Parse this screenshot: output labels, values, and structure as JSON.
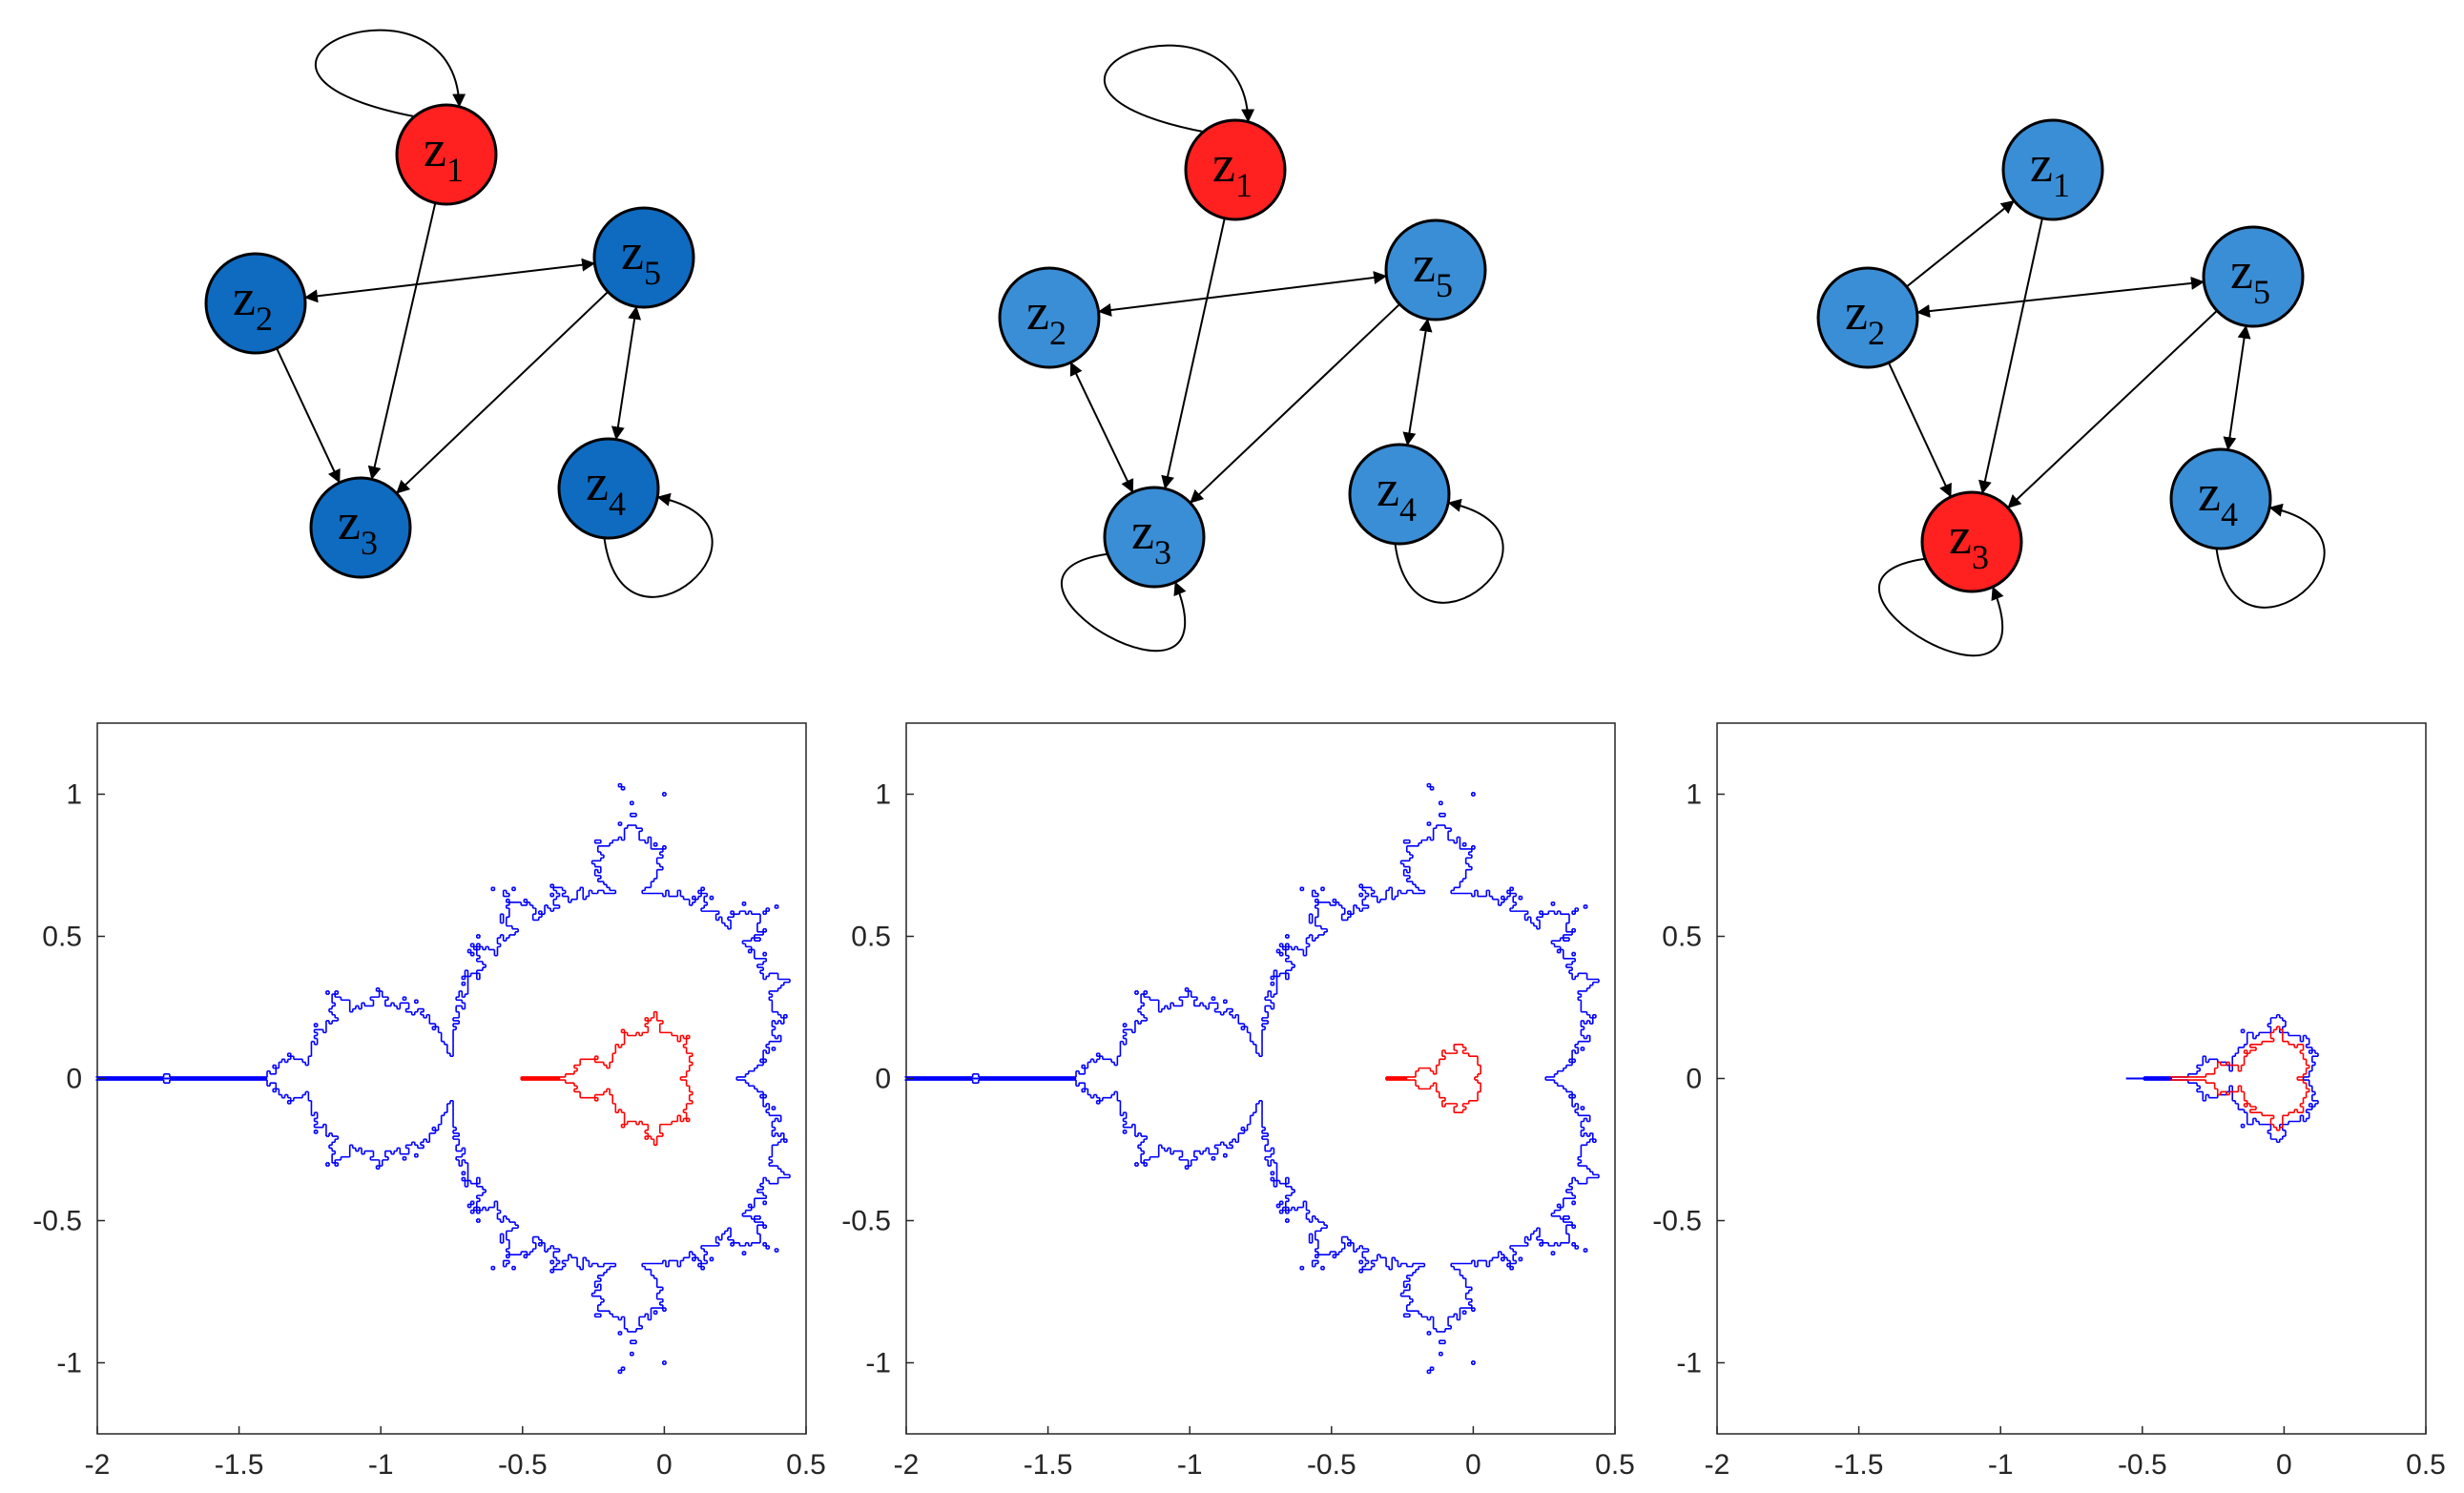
{
  "colors": {
    "blue_node": "#0e6bc0",
    "blue_node_light": "#3a8ed6",
    "red_node": "#ff2020",
    "edge": "#000000",
    "set_blue": "#0000ff",
    "set_red": "#ff0000"
  },
  "graphs": [
    {
      "nodes": [
        {
          "id": "1",
          "letter": "z",
          "sub": "1",
          "state": "red"
        },
        {
          "id": "2",
          "letter": "z",
          "sub": "2",
          "state": "blue"
        },
        {
          "id": "3",
          "letter": "z",
          "sub": "3",
          "state": "blue"
        },
        {
          "id": "4",
          "letter": "z",
          "sub": "4",
          "state": "blue"
        },
        {
          "id": "5",
          "letter": "z",
          "sub": "5",
          "state": "blue"
        }
      ],
      "edges": [
        {
          "from": "1",
          "to": "1",
          "type": "loop"
        },
        {
          "from": "1",
          "to": "3",
          "type": "directed"
        },
        {
          "from": "2",
          "to": "5",
          "type": "bidirectional"
        },
        {
          "from": "2",
          "to": "3",
          "type": "directed"
        },
        {
          "from": "5",
          "to": "3",
          "type": "directed"
        },
        {
          "from": "5",
          "to": "4",
          "type": "bidirectional"
        },
        {
          "from": "4",
          "to": "4",
          "type": "loop"
        }
      ]
    },
    {
      "nodes": [
        {
          "id": "1",
          "letter": "z",
          "sub": "1",
          "state": "red"
        },
        {
          "id": "2",
          "letter": "z",
          "sub": "2",
          "state": "blue"
        },
        {
          "id": "3",
          "letter": "z",
          "sub": "3",
          "state": "blue"
        },
        {
          "id": "4",
          "letter": "z",
          "sub": "4",
          "state": "blue"
        },
        {
          "id": "5",
          "letter": "z",
          "sub": "5",
          "state": "blue"
        }
      ],
      "edges": [
        {
          "from": "1",
          "to": "1",
          "type": "loop"
        },
        {
          "from": "1",
          "to": "3",
          "type": "directed"
        },
        {
          "from": "2",
          "to": "5",
          "type": "bidirectional"
        },
        {
          "from": "2",
          "to": "3",
          "type": "bidirectional"
        },
        {
          "from": "5",
          "to": "3",
          "type": "directed"
        },
        {
          "from": "5",
          "to": "4",
          "type": "bidirectional"
        },
        {
          "from": "3",
          "to": "3",
          "type": "loop"
        },
        {
          "from": "4",
          "to": "4",
          "type": "loop"
        }
      ]
    },
    {
      "nodes": [
        {
          "id": "1",
          "letter": "z",
          "sub": "1",
          "state": "blue"
        },
        {
          "id": "2",
          "letter": "z",
          "sub": "2",
          "state": "blue"
        },
        {
          "id": "3",
          "letter": "z",
          "sub": "3",
          "state": "red"
        },
        {
          "id": "4",
          "letter": "z",
          "sub": "4",
          "state": "blue"
        },
        {
          "id": "5",
          "letter": "z",
          "sub": "5",
          "state": "blue"
        }
      ],
      "edges": [
        {
          "from": "2",
          "to": "1",
          "type": "directed"
        },
        {
          "from": "1",
          "to": "3",
          "type": "directed"
        },
        {
          "from": "2",
          "to": "5",
          "type": "bidirectional"
        },
        {
          "from": "2",
          "to": "3",
          "type": "directed"
        },
        {
          "from": "5",
          "to": "3",
          "type": "directed"
        },
        {
          "from": "5",
          "to": "4",
          "type": "bidirectional"
        },
        {
          "from": "3",
          "to": "3",
          "type": "loop"
        },
        {
          "from": "4",
          "to": "4",
          "type": "loop"
        }
      ]
    }
  ],
  "plots": [
    {
      "xlim": [
        -2,
        0.5
      ],
      "ylim": [
        -1.25,
        1.25
      ],
      "xticks": [
        "-2",
        "-1.5",
        "-1",
        "-0.5",
        "0",
        "0.5"
      ],
      "yticks": [
        "1",
        "0.5",
        "0",
        "-0.5",
        "-1"
      ],
      "blue_set": "mandelbrot",
      "red_set": {
        "center": [
          -0.13,
          0
        ],
        "scale": 0.25
      }
    },
    {
      "xlim": [
        -2,
        0.5
      ],
      "ylim": [
        -1.25,
        1.25
      ],
      "xticks": [
        "-2",
        "-1.5",
        "-1",
        "-0.5",
        "0",
        "0.5"
      ],
      "yticks": [
        "1",
        "0.5",
        "0",
        "-0.5",
        "-1"
      ],
      "blue_set": "mandelbrot",
      "red_set": {
        "center": [
          -0.1,
          0
        ],
        "scale": 0.14
      }
    },
    {
      "xlim": [
        -2,
        0.5
      ],
      "ylim": [
        -1.25,
        1.25
      ],
      "xticks": [
        "-2",
        "-1.5",
        "-1",
        "-0.5",
        "0",
        "0.5"
      ],
      "yticks": [
        "1",
        "0.5",
        "0",
        "-0.5",
        "-1"
      ],
      "blue_set": {
        "center": [
          -0.12,
          0
        ],
        "scale": 0.25
      },
      "red_set": {
        "center": [
          -0.1,
          0
        ],
        "scale": 0.2
      }
    }
  ]
}
